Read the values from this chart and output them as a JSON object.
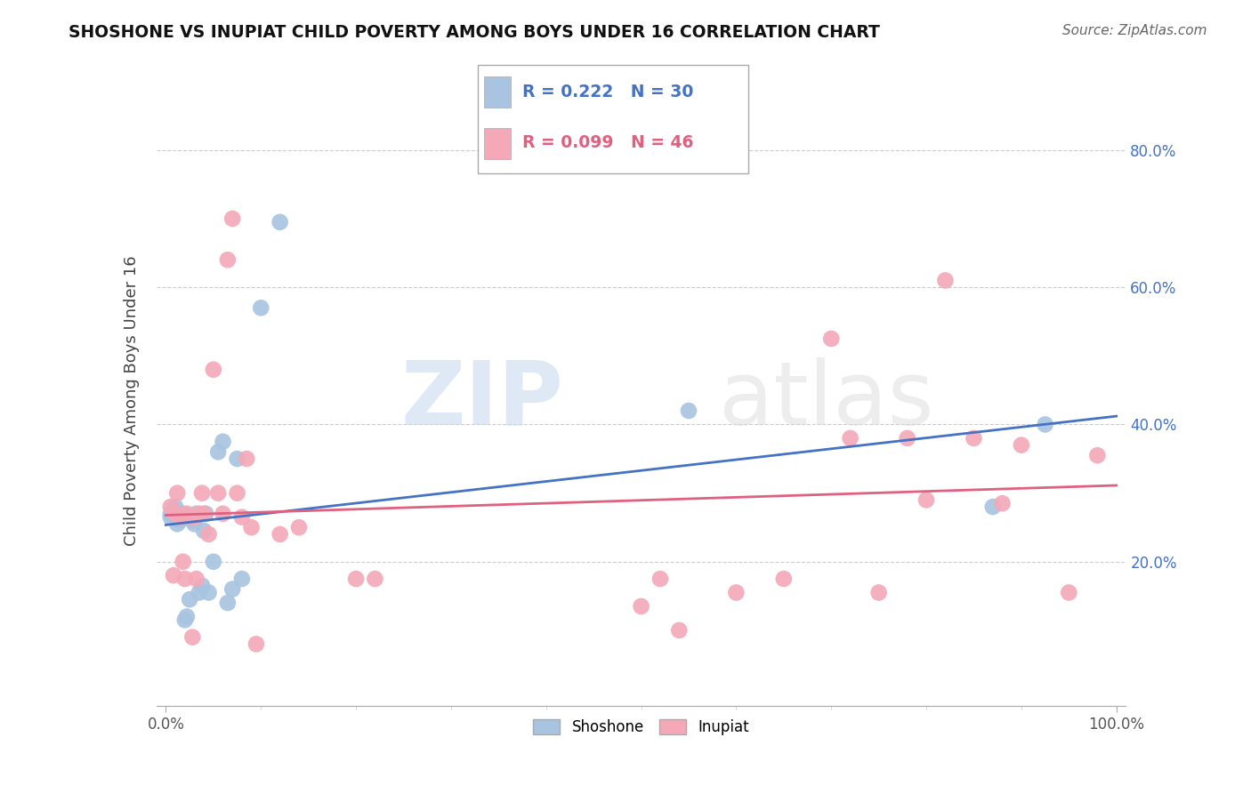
{
  "title": "SHOSHONE VS INUPIAT CHILD POVERTY AMONG BOYS UNDER 16 CORRELATION CHART",
  "source": "Source: ZipAtlas.com",
  "ylabel": "Child Poverty Among Boys Under 16",
  "watermark_zip": "ZIP",
  "watermark_atlas": "atlas",
  "shoshone_R": 0.222,
  "shoshone_N": 30,
  "inupiat_R": 0.099,
  "inupiat_N": 46,
  "shoshone_color": "#a8c4e0",
  "inupiat_color": "#f4a8b8",
  "shoshone_line_color": "#4472c4",
  "inupiat_line_color": "#e06080",
  "xlim": [
    -0.01,
    1.01
  ],
  "ylim": [
    -0.01,
    0.88
  ],
  "shoshone_x": [
    0.005,
    0.005,
    0.008,
    0.01,
    0.012,
    0.015,
    0.018,
    0.02,
    0.022,
    0.025,
    0.028,
    0.03,
    0.032,
    0.035,
    0.038,
    0.04,
    0.042,
    0.045,
    0.05,
    0.055,
    0.06,
    0.065,
    0.07,
    0.075,
    0.08,
    0.1,
    0.12,
    0.55,
    0.87,
    0.925
  ],
  "shoshone_y": [
    0.265,
    0.27,
    0.275,
    0.28,
    0.255,
    0.26,
    0.27,
    0.115,
    0.12,
    0.145,
    0.26,
    0.255,
    0.27,
    0.155,
    0.165,
    0.245,
    0.27,
    0.155,
    0.2,
    0.36,
    0.375,
    0.14,
    0.16,
    0.35,
    0.175,
    0.57,
    0.695,
    0.42,
    0.28,
    0.4
  ],
  "inupiat_x": [
    0.005,
    0.008,
    0.01,
    0.012,
    0.015,
    0.018,
    0.02,
    0.022,
    0.025,
    0.028,
    0.03,
    0.032,
    0.035,
    0.038,
    0.04,
    0.045,
    0.05,
    0.055,
    0.06,
    0.065,
    0.07,
    0.075,
    0.08,
    0.085,
    0.09,
    0.095,
    0.12,
    0.14,
    0.2,
    0.22,
    0.5,
    0.52,
    0.54,
    0.6,
    0.65,
    0.7,
    0.72,
    0.75,
    0.78,
    0.8,
    0.82,
    0.85,
    0.88,
    0.9,
    0.95,
    0.98
  ],
  "inupiat_y": [
    0.28,
    0.18,
    0.27,
    0.3,
    0.265,
    0.2,
    0.175,
    0.27,
    0.265,
    0.09,
    0.265,
    0.175,
    0.27,
    0.3,
    0.27,
    0.24,
    0.48,
    0.3,
    0.27,
    0.64,
    0.7,
    0.3,
    0.265,
    0.35,
    0.25,
    0.08,
    0.24,
    0.25,
    0.175,
    0.175,
    0.135,
    0.175,
    0.1,
    0.155,
    0.175,
    0.525,
    0.38,
    0.155,
    0.38,
    0.29,
    0.61,
    0.38,
    0.285,
    0.37,
    0.155,
    0.355
  ]
}
